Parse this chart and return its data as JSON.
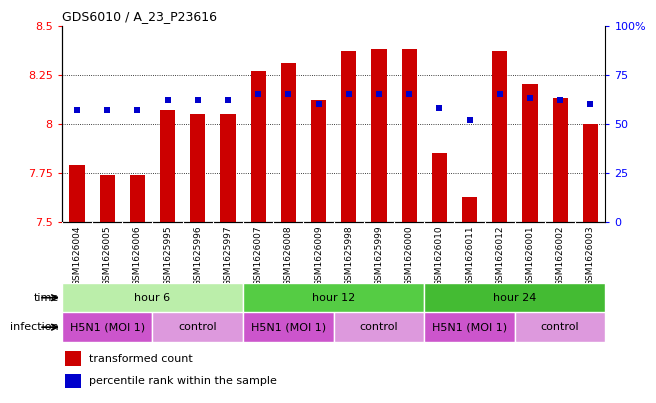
{
  "title": "GDS6010 / A_23_P23616",
  "samples": [
    "GSM1626004",
    "GSM1626005",
    "GSM1626006",
    "GSM1625995",
    "GSM1625996",
    "GSM1625997",
    "GSM1626007",
    "GSM1626008",
    "GSM1626009",
    "GSM1625998",
    "GSM1625999",
    "GSM1626000",
    "GSM1626010",
    "GSM1626011",
    "GSM1626012",
    "GSM1626001",
    "GSM1626002",
    "GSM1626003"
  ],
  "transformed_count": [
    7.79,
    7.74,
    7.74,
    8.07,
    8.05,
    8.05,
    8.27,
    8.31,
    8.12,
    8.37,
    8.38,
    8.38,
    7.85,
    7.63,
    8.37,
    8.2,
    8.13,
    8.0
  ],
  "percentile_rank": [
    57,
    57,
    57,
    62,
    62,
    62,
    65,
    65,
    60,
    65,
    65,
    65,
    58,
    52,
    65,
    63,
    62,
    60
  ],
  "y_min": 7.5,
  "y_max": 8.5,
  "y_ticks": [
    7.5,
    7.75,
    8.0,
    8.25,
    8.5
  ],
  "y_tick_labels": [
    "7.5",
    "7.75",
    "8",
    "8.25",
    "8.5"
  ],
  "right_y_ticks": [
    0,
    25,
    50,
    75,
    100
  ],
  "right_y_labels": [
    "0",
    "25",
    "50",
    "75",
    "100%"
  ],
  "bar_color": "#cc0000",
  "dot_color": "#0000cc",
  "time_groups": [
    {
      "label": "hour 6",
      "start": 0,
      "end": 6,
      "color": "#bbeeaa"
    },
    {
      "label": "hour 12",
      "start": 6,
      "end": 12,
      "color": "#55cc44"
    },
    {
      "label": "hour 24",
      "start": 12,
      "end": 18,
      "color": "#44bb33"
    }
  ],
  "infection_groups": [
    {
      "label": "H5N1 (MOI 1)",
      "start": 0,
      "end": 3,
      "color": "#cc55cc"
    },
    {
      "label": "control",
      "start": 3,
      "end": 6,
      "color": "#dd99dd"
    },
    {
      "label": "H5N1 (MOI 1)",
      "start": 6,
      "end": 9,
      "color": "#cc55cc"
    },
    {
      "label": "control",
      "start": 9,
      "end": 12,
      "color": "#dd99dd"
    },
    {
      "label": "H5N1 (MOI 1)",
      "start": 12,
      "end": 15,
      "color": "#cc55cc"
    },
    {
      "label": "control",
      "start": 15,
      "end": 18,
      "color": "#dd99dd"
    }
  ],
  "bar_width": 0.5,
  "xtick_bg_color": "#cccccc",
  "fig_width": 6.51,
  "fig_height": 3.93,
  "dpi": 100
}
